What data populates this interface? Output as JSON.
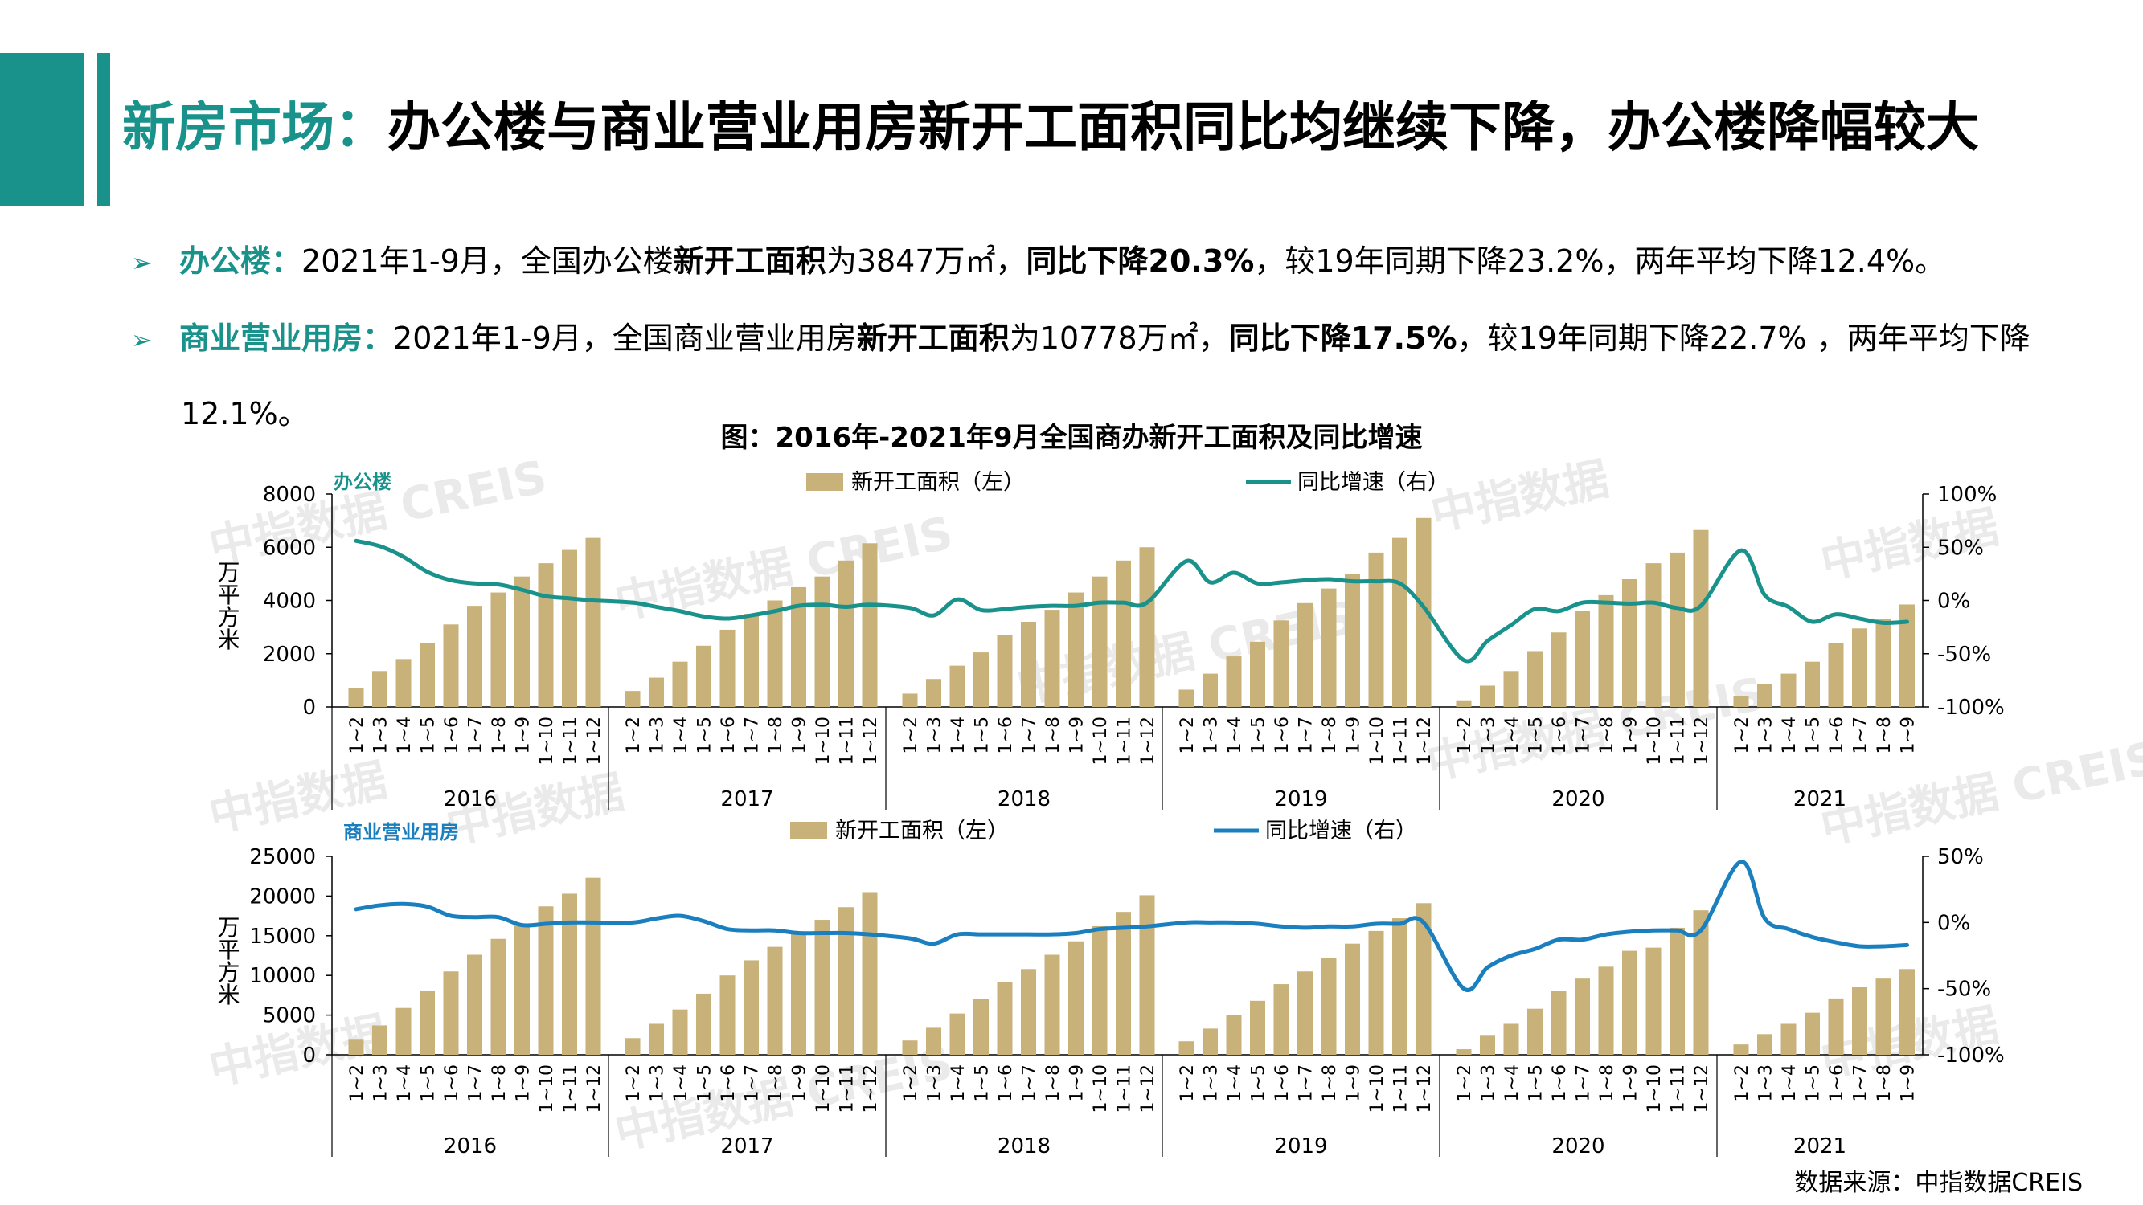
{
  "title": {
    "part1": "新房市场：",
    "part2": "办公楼与商业营业用房新开工面积同比均继续下降，办公楼降幅较大"
  },
  "bullets": [
    {
      "label": "办公楼：",
      "t1": "2021年1-9月，全国办公楼",
      "b1": "新开工面积",
      "t2": "为3847万㎡，",
      "b2": "同比下降20.3%",
      "t3": "，较19年同期下降23.2%，两年平均下降12.4%。"
    },
    {
      "label": "商业营业用房：",
      "t1": "2021年1-9月，全国商业营业用房",
      "b1": "新开工面积",
      "t2": "为10778万㎡，",
      "b2": "同比下降17.5%",
      "t3": "，较19年同期下降22.7% ，两年平均下降",
      "cont": "12.1%。"
    }
  ],
  "figure_title": "图：2016年-2021年9月全国商办新开工面积及同比增速",
  "source": "数据来源：中指数据CREIS",
  "watermarks": [
    "中指数据 CREIS",
    "中指数据 CREIS",
    "中指数据",
    "中指数据",
    "中指数据 CREIS",
    "中指数据 CREIS",
    "中指数据",
    "中指数据",
    "中指数据 CREIS",
    "中指数据 CREIS",
    "中指数据",
    "中指数据"
  ],
  "chart_data": [
    {
      "type": "bar",
      "title": "办公楼",
      "ylabel": "万平方米",
      "ylim": [
        0,
        8000
      ],
      "yticks": [
        "0",
        "2000",
        "4000",
        "6000",
        "8000"
      ],
      "y2lim": [
        -100,
        100
      ],
      "y2ticks": [
        "-100%",
        "-50%",
        "0%",
        "50%",
        "100%"
      ],
      "years": [
        "2016",
        "2017",
        "2018",
        "2019",
        "2020",
        "2021"
      ],
      "categories": [
        "1~2",
        "1~3",
        "1~4",
        "1~5",
        "1~6",
        "1~7",
        "1~8",
        "1~9",
        "1~10",
        "1~11",
        "1~12"
      ],
      "categories_2021": [
        "1~2",
        "1~3",
        "1~4",
        "1~5",
        "1~6",
        "1~7",
        "1~8",
        "1~9"
      ],
      "colors": {
        "bar": "#c8b27a",
        "line": "#1a928c"
      },
      "series": [
        {
          "name": "新开工面积（左）",
          "axis": "left",
          "values": [
            [
              700,
              1350,
              1800,
              2400,
              3100,
              3800,
              4300,
              4900,
              5400,
              5900,
              6350
            ],
            [
              600,
              1100,
              1700,
              2300,
              2900,
              3500,
              4000,
              4500,
              4900,
              5500,
              6150
            ],
            [
              500,
              1050,
              1550,
              2050,
              2700,
              3200,
              3650,
              4300,
              4900,
              5500,
              6000
            ],
            [
              650,
              1250,
              1900,
              2450,
              3250,
              3900,
              4450,
              5000,
              5800,
              6350,
              7100
            ],
            [
              250,
              800,
              1350,
              2100,
              2800,
              3600,
              4200,
              4800,
              5400,
              5800,
              6650
            ],
            [
              400,
              850,
              1250,
              1700,
              2400,
              2950,
              3300,
              3850
            ]
          ]
        },
        {
          "name": "同比增速（右）",
          "axis": "right",
          "values": [
            [
              56,
              51,
              41,
              27,
              19,
              16,
              15,
              10,
              4,
              2,
              0
            ],
            [
              -2,
              -6,
              -10,
              -15,
              -17,
              -14,
              -10,
              -5,
              -4,
              -6,
              -4
            ],
            [
              -7,
              -14,
              1,
              -9,
              -8,
              -6,
              -5,
              -5,
              -2,
              -2,
              -2
            ],
            [
              37,
              17,
              26,
              16,
              17,
              19,
              20,
              18,
              18,
              16,
              -6
            ],
            [
              -56,
              -38,
              -23,
              -8,
              -10,
              -2,
              -2,
              -3,
              -2,
              -7,
              -5
            ],
            [
              47,
              5,
              -6,
              -20,
              -13,
              -17,
              -21,
              -20
            ]
          ]
        }
      ],
      "legend": "top-center"
    },
    {
      "type": "bar",
      "title": "商业营业用房",
      "ylabel": "万平方米",
      "ylim": [
        0,
        25000
      ],
      "yticks": [
        "0",
        "5000",
        "10000",
        "15000",
        "20000",
        "25000"
      ],
      "y2lim": [
        -100,
        50
      ],
      "y2ticks": [
        "-100%",
        "-50%",
        "0%",
        "50%"
      ],
      "years": [
        "2016",
        "2017",
        "2018",
        "2019",
        "2020",
        "2021"
      ],
      "categories": [
        "1~2",
        "1~3",
        "1~4",
        "1~5",
        "1~6",
        "1~7",
        "1~8",
        "1~9",
        "1~10",
        "1~11",
        "1~12"
      ],
      "categories_2021": [
        "1~2",
        "1~3",
        "1~4",
        "1~5",
        "1~6",
        "1~7",
        "1~8",
        "1~9"
      ],
      "colors": {
        "bar": "#c8b27a",
        "line": "#1a7fbf"
      },
      "series": [
        {
          "name": "新开工面积（左）",
          "axis": "left",
          "values": [
            [
              2000,
              3700,
              5900,
              8100,
              10500,
              12600,
              14600,
              16400,
              18700,
              20300,
              22300
            ],
            [
              2100,
              3900,
              5700,
              7700,
              10000,
              11900,
              13600,
              15300,
              17000,
              18600,
              20500
            ],
            [
              1800,
              3400,
              5200,
              7000,
              9200,
              10800,
              12600,
              14300,
              16200,
              18000,
              20100
            ],
            [
              1700,
              3300,
              5000,
              6800,
              8900,
              10500,
              12200,
              14000,
              15600,
              17200,
              19100
            ],
            [
              700,
              2400,
              3900,
              5800,
              8000,
              9600,
              11100,
              13100,
              13500,
              16000,
              18200
            ],
            [
              1300,
              2600,
              3900,
              5300,
              7100,
              8500,
              9600,
              10800
            ]
          ]
        },
        {
          "name": "同比增速（右）",
          "axis": "right",
          "values": [
            [
              10,
              13,
              14,
              12,
              5,
              4,
              4,
              -2,
              -1,
              0,
              0
            ],
            [
              0,
              3,
              5,
              1,
              -5,
              -6,
              -6,
              -8,
              -8,
              -8,
              -9
            ],
            [
              -12,
              -16,
              -9,
              -9,
              -9,
              -9,
              -9,
              -8,
              -5,
              -4,
              -3
            ],
            [
              0,
              0,
              0,
              -1,
              -3,
              -4,
              -3,
              -3,
              -1,
              -1,
              0
            ],
            [
              -50,
              -34,
              -25,
              -20,
              -13,
              -13,
              -9,
              -7,
              -6,
              -6,
              -6
            ],
            [
              46,
              3,
              -5,
              -11,
              -15,
              -18,
              -18,
              -17
            ]
          ]
        }
      ],
      "legend": "top-center"
    }
  ]
}
